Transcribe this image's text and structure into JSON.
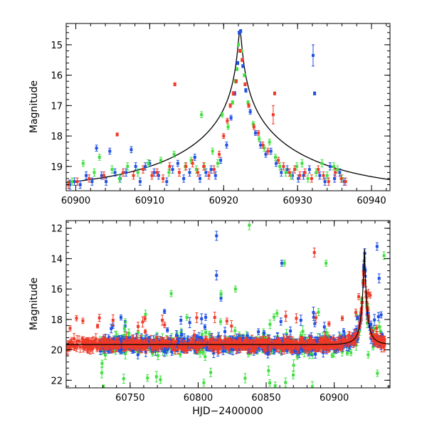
{
  "colors": {
    "blue": "#1e50e6",
    "green": "#40e040",
    "red": "#f03a28",
    "model": "#000000"
  },
  "chart_data": [
    {
      "type": "scatter",
      "panel": "top",
      "title": "",
      "xlabel": "",
      "ylabel": "Magnitude",
      "xlim": [
        60898.7,
        60942.5
      ],
      "ylim": [
        19.8,
        14.3
      ],
      "y_inverted": true,
      "grid": false,
      "x_ticks": [
        60900,
        60910,
        60920,
        60930,
        60940
      ],
      "y_ticks": [
        15,
        16,
        17,
        18,
        19
      ],
      "model_curve": {
        "t0": 60922.2,
        "peak_mag": 14.55,
        "baseline_mag": 19.8,
        "tE": 18,
        "u0": 0.012
      },
      "series": [
        {
          "color_key": "blue",
          "points": [
            [
              60899.2,
              19.6,
              0.15
            ],
            [
              60899.8,
              19.5,
              0.12
            ],
            [
              60900.6,
              19.6,
              0.12
            ],
            [
              60901.4,
              19.3,
              0.12
            ],
            [
              60902.2,
              19.5,
              0.12
            ],
            [
              60902.8,
              18.4,
              0.1
            ],
            [
              60903.5,
              19.3,
              0.12
            ],
            [
              60904.1,
              19.5,
              0.12
            ],
            [
              60904.6,
              18.5,
              0.1
            ],
            [
              60905.3,
              19.2,
              0.12
            ],
            [
              60906.0,
              19.4,
              0.12
            ],
            [
              60906.8,
              19.2,
              0.12
            ],
            [
              60907.5,
              18.45,
              0.1
            ],
            [
              60908.1,
              19.0,
              0.12
            ],
            [
              60908.7,
              19.5,
              0.12
            ],
            [
              60909.4,
              19.0,
              0.12
            ],
            [
              60910.0,
              18.9,
              0.1
            ],
            [
              60910.6,
              19.2,
              0.12
            ],
            [
              60911.2,
              19.3,
              0.12
            ],
            [
              60912.3,
              19.5,
              0.12
            ],
            [
              60913.1,
              19.1,
              0.12
            ],
            [
              60913.8,
              18.9,
              0.1
            ],
            [
              60914.6,
              19.4,
              0.12
            ],
            [
              60915.4,
              19.2,
              0.12
            ],
            [
              60916.1,
              18.7,
              0.1
            ],
            [
              60916.8,
              19.4,
              0.12
            ],
            [
              60917.6,
              19.2,
              0.12
            ],
            [
              60918.3,
              19.1,
              0.12
            ],
            [
              60918.9,
              19.3,
              0.12
            ],
            [
              60919.6,
              18.8,
              0.1
            ],
            [
              60920.4,
              18.3,
              0.1
            ],
            [
              60921.0,
              17.4,
              0.08
            ],
            [
              60921.5,
              16.6,
              0.06
            ],
            [
              60921.9,
              15.6,
              0.05
            ],
            [
              60922.1,
              14.6,
              0.05
            ],
            [
              60922.3,
              14.55,
              0.05
            ],
            [
              60922.6,
              15.7,
              0.05
            ],
            [
              60923.0,
              16.5,
              0.06
            ],
            [
              60923.6,
              17.2,
              0.08
            ],
            [
              60924.3,
              17.9,
              0.08
            ],
            [
              60925.0,
              18.3,
              0.1
            ],
            [
              60925.7,
              18.6,
              0.1
            ],
            [
              60926.4,
              18.5,
              0.1
            ],
            [
              60927.1,
              18.9,
              0.1
            ],
            [
              60927.8,
              19.2,
              0.12
            ],
            [
              60928.6,
              19.1,
              0.12
            ],
            [
              60929.3,
              19.3,
              0.12
            ],
            [
              60930.1,
              19.4,
              0.12
            ],
            [
              60930.8,
              19.3,
              0.12
            ],
            [
              60931.6,
              19.1,
              0.12
            ],
            [
              60932.1,
              15.35,
              0.35
            ],
            [
              60932.3,
              16.6,
              0.05
            ],
            [
              60933.0,
              19.3,
              0.12
            ],
            [
              60933.7,
              19.5,
              0.12
            ],
            [
              60934.4,
              19.0,
              0.12
            ],
            [
              60935.0,
              19.4,
              0.12
            ],
            [
              60935.7,
              19.2,
              0.12
            ],
            [
              60936.3,
              19.5,
              0.12
            ]
          ]
        },
        {
          "color_key": "green",
          "points": [
            [
              60899.5,
              19.5,
              0.12
            ],
            [
              60901.0,
              18.9,
              0.1
            ],
            [
              60902.5,
              19.2,
              0.12
            ],
            [
              60903.2,
              18.7,
              0.1
            ],
            [
              60904.9,
              19.1,
              0.12
            ],
            [
              60905.9,
              19.4,
              0.12
            ],
            [
              60907.0,
              19.0,
              0.12
            ],
            [
              60908.4,
              19.2,
              0.12
            ],
            [
              60909.8,
              18.9,
              0.12
            ],
            [
              60911.5,
              18.8,
              0.1
            ],
            [
              60912.6,
              19.2,
              0.12
            ],
            [
              60913.3,
              18.6,
              0.1
            ],
            [
              60914.8,
              19.0,
              0.12
            ],
            [
              60915.6,
              18.8,
              0.1
            ],
            [
              60916.3,
              19.1,
              0.12
            ],
            [
              60917.0,
              17.3,
              0.1
            ],
            [
              60917.4,
              19.0,
              0.12
            ],
            [
              60918.5,
              18.5,
              0.1
            ],
            [
              60919.2,
              18.9,
              0.12
            ],
            [
              60919.8,
              17.3,
              0.08
            ],
            [
              60920.6,
              17.7,
              0.08
            ],
            [
              60921.2,
              16.9,
              0.06
            ],
            [
              60921.6,
              16.2,
              0.06
            ],
            [
              60921.8,
              15.8,
              0.05
            ],
            [
              60922.0,
              15.0,
              0.05
            ],
            [
              60922.4,
              15.2,
              0.05
            ],
            [
              60922.8,
              16.0,
              0.05
            ],
            [
              60923.3,
              16.9,
              0.06
            ],
            [
              60924.0,
              17.6,
              0.08
            ],
            [
              60924.8,
              18.1,
              0.08
            ],
            [
              60925.5,
              18.4,
              0.1
            ],
            [
              60926.2,
              18.2,
              0.1
            ],
            [
              60927.0,
              18.7,
              0.1
            ],
            [
              60927.6,
              19.0,
              0.12
            ],
            [
              60928.4,
              19.2,
              0.12
            ],
            [
              60929.1,
              19.3,
              0.12
            ],
            [
              60929.9,
              19.0,
              0.12
            ],
            [
              60930.6,
              18.9,
              0.12
            ],
            [
              60931.4,
              19.4,
              0.12
            ],
            [
              60932.5,
              19.2,
              0.12
            ],
            [
              60933.3,
              18.9,
              0.12
            ],
            [
              60934.0,
              19.3,
              0.12
            ],
            [
              60934.9,
              19.0,
              0.12
            ],
            [
              60935.4,
              19.1,
              0.12
            ],
            [
              60936.0,
              19.4,
              0.12
            ]
          ]
        },
        {
          "color_key": "red",
          "points": [
            [
              60899.0,
              19.6,
              0.12
            ],
            [
              60900.2,
              19.5,
              0.12
            ],
            [
              60901.8,
              19.4,
              0.12
            ],
            [
              60903.8,
              19.3,
              0.12
            ],
            [
              60905.6,
              17.95,
              0.05
            ],
            [
              60906.4,
              19.2,
              0.12
            ],
            [
              60907.8,
              19.3,
              0.12
            ],
            [
              60909.1,
              19.1,
              0.12
            ],
            [
              60910.3,
              19.3,
              0.12
            ],
            [
              60911.0,
              19.2,
              0.12
            ],
            [
              60911.8,
              19.4,
              0.12
            ],
            [
              60912.7,
              19.0,
              0.12
            ],
            [
              60913.4,
              16.3,
              0.05
            ],
            [
              60914.0,
              19.2,
              0.12
            ],
            [
              60914.9,
              19.0,
              0.12
            ],
            [
              60915.8,
              18.9,
              0.12
            ],
            [
              60916.5,
              19.2,
              0.12
            ],
            [
              60917.3,
              19.0,
              0.12
            ],
            [
              60918.0,
              19.3,
              0.12
            ],
            [
              60918.7,
              19.1,
              0.12
            ],
            [
              60919.4,
              18.6,
              0.1
            ],
            [
              60920.0,
              18.0,
              0.08
            ],
            [
              60920.5,
              17.5,
              0.08
            ],
            [
              60920.9,
              17.0,
              0.06
            ],
            [
              60921.3,
              16.6,
              0.06
            ],
            [
              60921.7,
              16.2,
              0.05
            ],
            [
              60922.2,
              15.2,
              0.05
            ],
            [
              60922.5,
              15.5,
              0.05
            ],
            [
              60922.9,
              16.3,
              0.05
            ],
            [
              60923.4,
              17.0,
              0.06
            ],
            [
              60924.1,
              17.7,
              0.08
            ],
            [
              60924.7,
              17.9,
              0.08
            ],
            [
              60925.3,
              18.3,
              0.1
            ],
            [
              60926.0,
              18.5,
              0.1
            ],
            [
              60926.7,
              17.3,
              0.3
            ],
            [
              60926.9,
              16.6,
              0.05
            ],
            [
              60927.4,
              18.8,
              0.1
            ],
            [
              60928.1,
              19.0,
              0.12
            ],
            [
              60928.9,
              19.2,
              0.12
            ],
            [
              60929.6,
              19.1,
              0.12
            ],
            [
              60930.3,
              19.3,
              0.12
            ],
            [
              60931.0,
              19.2,
              0.12
            ],
            [
              60931.9,
              19.4,
              0.12
            ],
            [
              60932.8,
              19.1,
              0.12
            ],
            [
              60933.5,
              19.3,
              0.12
            ],
            [
              60934.2,
              19.5,
              0.12
            ],
            [
              60935.1,
              19.2,
              0.12
            ],
            [
              60935.9,
              19.4,
              0.12
            ],
            [
              60936.5,
              19.5,
              0.12
            ]
          ]
        }
      ]
    },
    {
      "type": "scatter",
      "panel": "bottom",
      "title": "",
      "xlabel": "HJD−2400000",
      "ylabel": "Magnitude",
      "xlim": [
        60703,
        60941
      ],
      "ylim": [
        22.5,
        11.5
      ],
      "y_inverted": true,
      "grid": false,
      "x_ticks": [
        60750,
        60800,
        60850,
        60900
      ],
      "y_ticks": [
        12,
        14,
        16,
        18,
        20,
        22
      ],
      "baseline_mag": 19.65,
      "peak_event": {
        "t0": 60922.2,
        "peak_mag": 14.6
      },
      "outliers": [
        {
          "color_key": "blue",
          "points": [
            [
              60813.5,
              12.5,
              0.3
            ],
            [
              60813.5,
              15.1,
              0.3
            ],
            [
              60816.8,
              16.6,
              0.2
            ],
            [
              60861.5,
              14.3,
              0.2
            ],
            [
              60921.8,
              14.6,
              0.2
            ],
            [
              60931.5,
              13.2,
              0.25
            ],
            [
              60933.0,
              15.3,
              0.3
            ],
            [
              60934.5,
              17.7,
              0.2
            ]
          ]
        },
        {
          "color_key": "green",
          "points": [
            [
              60745.8,
              18.6,
              0.2
            ],
            [
              60780.2,
              16.3,
              0.2
            ],
            [
              60816.8,
              16.3,
              0.2
            ],
            [
              60827.4,
              16.0,
              0.2
            ],
            [
              60837.6,
              11.8,
              0.3
            ],
            [
              60858.0,
              17.6,
              0.2
            ],
            [
              60863.4,
              14.3,
              0.2
            ],
            [
              60894.0,
              14.3,
              0.2
            ],
            [
              60936.6,
              13.8,
              0.25
            ]
          ]
        },
        {
          "color_key": "red",
          "points": [
            [
              60885.4,
              13.6,
              0.3
            ],
            [
              60918.0,
              16.5,
              0.2
            ],
            [
              60922.5,
              15.6,
              0.2
            ],
            [
              60926.5,
              16.4,
              0.2
            ]
          ]
        }
      ]
    }
  ]
}
